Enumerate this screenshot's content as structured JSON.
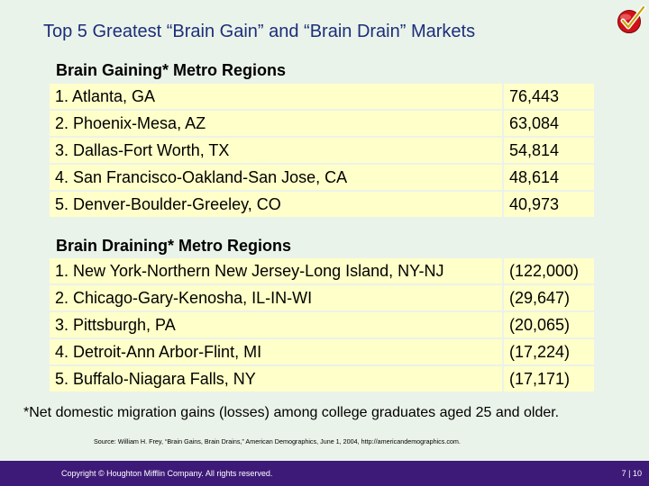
{
  "slide": {
    "title": "Top 5 Greatest “Brain Gain” and “Brain Drain” Markets"
  },
  "gaining": {
    "heading": "Brain Gaining* Metro Regions",
    "rows": [
      {
        "name": "1. Atlanta, GA",
        "value": "76,443"
      },
      {
        "name": "2. Phoenix-Mesa, AZ",
        "value": "63,084"
      },
      {
        "name": "3. Dallas-Fort Worth, TX",
        "value": "54,814"
      },
      {
        "name": "4. San Francisco-Oakland-San Jose, CA",
        "value": "48,614"
      },
      {
        "name": "5. Denver-Boulder-Greeley, CO",
        "value": "40,973"
      }
    ]
  },
  "draining": {
    "heading": "Brain Draining* Metro Regions",
    "rows": [
      {
        "name": "1. New York-Northern New Jersey-Long Island, NY-NJ",
        "value": "(122,000)"
      },
      {
        "name": "2. Chicago-Gary-Kenosha, IL-IN-WI",
        "value": "(29,647)"
      },
      {
        "name": "3. Pittsburgh, PA",
        "value": "(20,065)"
      },
      {
        "name": "4. Detroit-Ann Arbor-Flint, MI",
        "value": "(17,224)"
      },
      {
        "name": "5. Buffalo-Niagara Falls, NY",
        "value": "(17,171)"
      }
    ]
  },
  "footnote": "*Net domestic migration gains (losses) among college graduates aged 25 and older.",
  "source": "Source: William H. Frey, “Brain Gains, Brain Drains,” American Demographics, June 1, 2004, http://americandemographics.com.",
  "footer": {
    "copyright": "Copyright © Houghton Mifflin Company. All rights reserved.",
    "page": "7 | 10"
  },
  "colors": {
    "background": "#eaf3ea",
    "title": "#1c2e7a",
    "cell": "#ffffc9",
    "footer_bar": "#3e1a78",
    "check_icon": "#d0111a"
  },
  "icons": {
    "logo": "check-mark-icon"
  }
}
